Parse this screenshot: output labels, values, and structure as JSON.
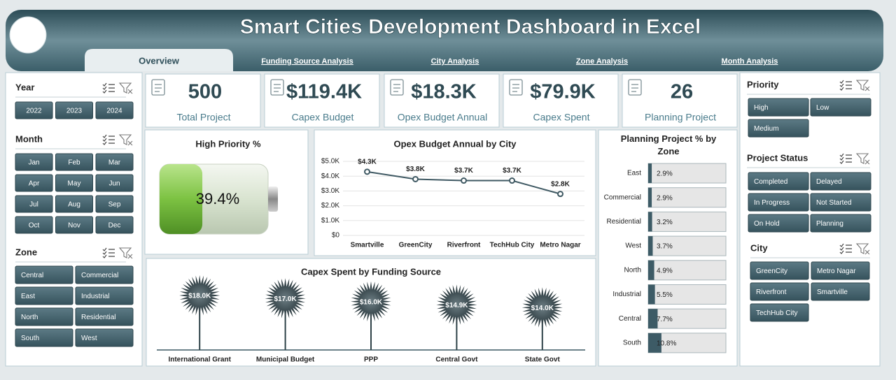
{
  "header": {
    "title": "Smart Cities Development Dashboard in Excel"
  },
  "tabs": [
    "Overview",
    "Funding Source Analysis",
    "City Analysis",
    "Zone Analysis",
    "Month Analysis"
  ],
  "slicers": [
    {
      "title": "Year",
      "items": [
        "2022",
        "2023",
        "2024"
      ]
    },
    {
      "title": "Month",
      "items": [
        "Jan",
        "Feb",
        "Mar",
        "Apr",
        "May",
        "Jun",
        "Jul",
        "Aug",
        "Sep",
        "Oct",
        "Nov",
        "Dec"
      ]
    },
    {
      "title": "Zone",
      "items": [
        "Central",
        "Commercial",
        "East",
        "Industrial",
        "North",
        "Residential",
        "South",
        "West"
      ]
    },
    {
      "title": "Priority",
      "items": [
        "High",
        "Low",
        "Medium"
      ]
    },
    {
      "title": "Project Status",
      "items": [
        "Completed",
        "Delayed",
        "In Progress",
        "Not Started",
        "On Hold",
        "Planning"
      ]
    },
    {
      "title": "City",
      "items": [
        "GreenCity",
        "Metro Nagar",
        "Riverfront",
        "Smartville",
        "TechHub City"
      ]
    }
  ],
  "kpis": [
    {
      "value": "500",
      "label": "Total Project"
    },
    {
      "value": "$119.4K",
      "label": "Capex Budget"
    },
    {
      "value": "$18.3K",
      "label": "Opex Budget Annual"
    },
    {
      "value": "$79.9K",
      "label": "Capex Spent"
    },
    {
      "value": "26",
      "label": "Planning Project"
    }
  ],
  "chart_data": [
    {
      "type": "battery",
      "title": "High Priority %",
      "value": 39.4,
      "value_label": "39.4%",
      "color": "#7cc242"
    },
    {
      "type": "line",
      "title": "Opex Budget Annual by City",
      "categories": [
        "Smartville",
        "GreenCity",
        "Riverfront",
        "TechHub City",
        "Metro Nagar"
      ],
      "values": [
        4300,
        3800,
        3700,
        3700,
        2800
      ],
      "value_labels": [
        "$4.3K",
        "$3.8K",
        "$3.7K",
        "$3.7K",
        "$2.8K"
      ],
      "color": "#3f5963",
      "grid": true,
      "ylim": [
        0,
        5000
      ],
      "yticks": [
        {
          "value": 0,
          "label": "$0"
        },
        {
          "value": 1000,
          "label": "$1.0K"
        },
        {
          "value": 2000,
          "label": "$2.0K"
        },
        {
          "value": 3000,
          "label": "$3.0K"
        },
        {
          "value": 4000,
          "label": "$4.0K"
        },
        {
          "value": 5000,
          "label": "$5.0K"
        }
      ]
    },
    {
      "type": "lollipop",
      "title": "Capex Spent by Funding Source",
      "categories": [
        "International Grant",
        "Municipal Budget",
        "PPP",
        "Central Govt",
        "State Govt"
      ],
      "values": [
        18000,
        17000,
        16000,
        14900,
        14000
      ],
      "value_labels": [
        "$18.0K",
        "$17.0K",
        "$16.0K",
        "$14.9K",
        "$14.0K"
      ],
      "color": "#2f4349"
    },
    {
      "type": "hbar",
      "title": "Planning Project % by Zone",
      "categories": [
        "East",
        "Commercial",
        "Residential",
        "West",
        "North",
        "Industrial",
        "Central",
        "South"
      ],
      "values": [
        2.9,
        2.9,
        3.2,
        3.7,
        4.9,
        5.5,
        7.7,
        10.8
      ],
      "value_labels": [
        "2.9%",
        "2.9%",
        "3.2%",
        "3.7%",
        "4.9%",
        "5.5%",
        "7.7%",
        "10.8%"
      ],
      "color": "#3d5b66"
    }
  ]
}
